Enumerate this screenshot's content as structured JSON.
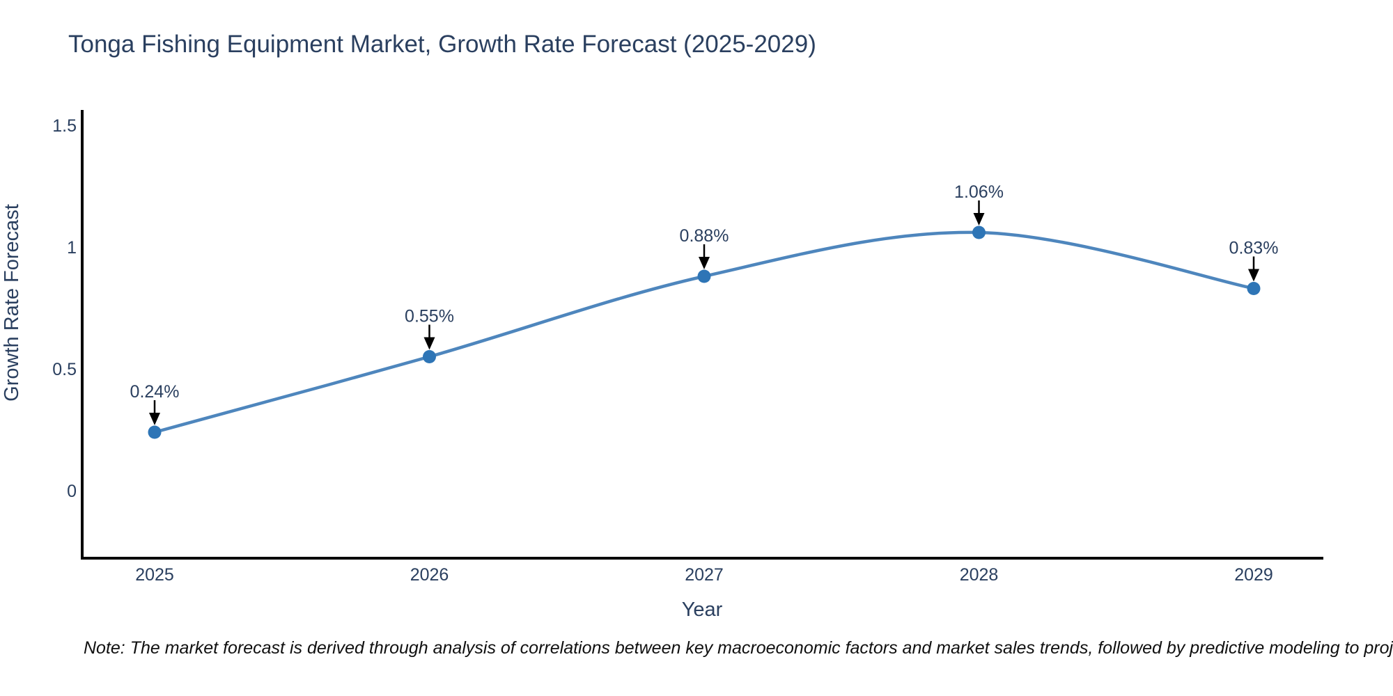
{
  "footnote": "Note: The market forecast is derived through analysis of correlations between key macroeconomic factors and market sales trends, followed by predictive modeling to project future sales",
  "chart_data": {
    "type": "line",
    "title": "Tonga Fishing Equipment Market, Growth Rate Forecast (2025-2029)",
    "categories": [
      "2025",
      "2026",
      "2027",
      "2028",
      "2029"
    ],
    "series": [
      {
        "name": "Growth Rate Forecast",
        "values": [
          0.24,
          0.55,
          0.88,
          1.06,
          0.83
        ]
      }
    ],
    "point_labels": [
      "0.24%",
      "0.55%",
      "0.88%",
      "1.06%",
      "0.83%"
    ],
    "xlabel": "Year",
    "ylabel": "Growth Rate Forecast",
    "ytick_labels": [
      "0",
      "0.5",
      "1",
      "1.5"
    ],
    "yticks": [
      0,
      0.5,
      1,
      1.5
    ],
    "ylim": [
      -0.56,
      1.58
    ],
    "line_shape": "spline",
    "grid": false,
    "legend": "none",
    "annotations_style": "value label with down arrow to each point",
    "colors": {
      "line": "#4e86bd",
      "marker": "#2e75b6",
      "axis": "#000000",
      "text": "#2a3f5f",
      "arrow": "#000000"
    }
  }
}
